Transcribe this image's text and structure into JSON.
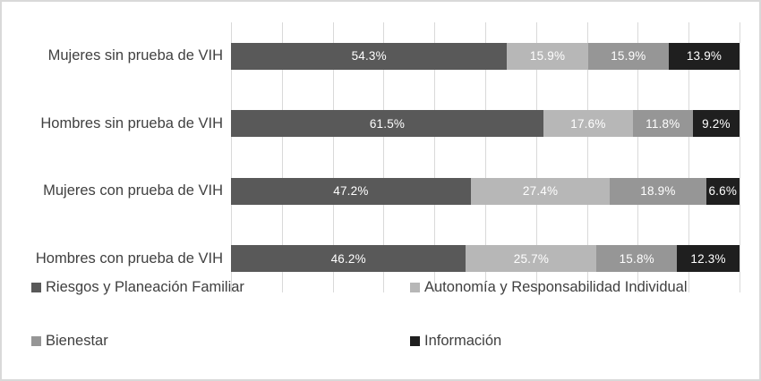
{
  "chart_data": {
    "type": "bar",
    "orientation": "horizontal",
    "stacked": true,
    "title": "",
    "categories": [
      "Mujeres sin prueba de VIH",
      "Hombres sin prueba de VIH",
      "Mujeres con prueba de VIH",
      "Hombres con prueba de VIH"
    ],
    "series": [
      {
        "name": "Riesgos y Planeación Familiar",
        "color": "#595959",
        "values": [
          54.3,
          61.5,
          47.2,
          46.2
        ],
        "labels": [
          "54.3%",
          "61.5%",
          "47.2%",
          "46.2%"
        ]
      },
      {
        "name": "Autonomía y Responsabilidad Individual",
        "color": "#b7b7b7",
        "values": [
          15.9,
          17.6,
          27.4,
          25.7
        ],
        "labels": [
          "15.9%",
          "17.6%",
          "27.4%",
          "25.7%"
        ]
      },
      {
        "name": "Bienestar",
        "color": "#969696",
        "values": [
          15.9,
          11.8,
          18.9,
          15.8
        ],
        "labels": [
          "15.9%",
          "11.8%",
          "18.9%",
          "15.8%"
        ]
      },
      {
        "name": "Información",
        "color": "#1f1f1f",
        "values": [
          13.9,
          9.2,
          6.6,
          12.3
        ],
        "labels": [
          "13.9%",
          "9.2%",
          "6.6%",
          "12.3%"
        ]
      }
    ],
    "xlim": [
      0,
      100
    ],
    "gridlines": {
      "interval_pct": 10,
      "color": "#d9d9d9"
    },
    "legend_position": "bottom",
    "legend_columns": 2,
    "data_label_color": "#ffffff"
  },
  "styles": {
    "background": "#ffffff",
    "border_color": "#d9d9d9",
    "text_color": "#404040"
  }
}
